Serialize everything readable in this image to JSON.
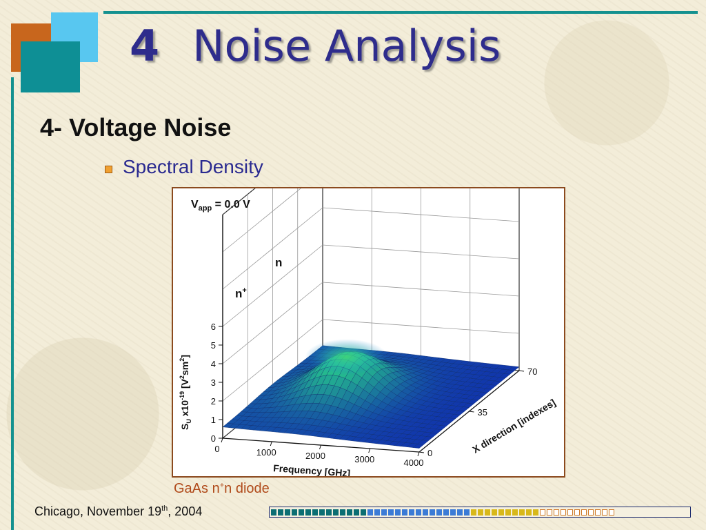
{
  "slide": {
    "title_number": "4",
    "title_text": "Noise Analysis",
    "subheading": "4- Voltage Noise",
    "bullet": "Spectral Density",
    "caption": {
      "prefix": "GaAs n",
      "sup": "+",
      "suffix": "n diode"
    },
    "footer": {
      "prefix": "Chicago, November 19",
      "sup": "th",
      "suffix": ", 2004"
    },
    "progress": {
      "filled": 39,
      "total": 50
    }
  },
  "colors": {
    "title": "#2e2c8c",
    "accent_teal": "#14918f",
    "accent_orange": "#c8661d",
    "accent_blue": "#58c7f0",
    "chart_border": "#8b4a1e",
    "caption": "#b04a1a"
  },
  "chart_data": {
    "type": "surface-3d",
    "annotation": {
      "main": "V",
      "sub": "app",
      "rest": " = 0.0  V"
    },
    "region_labels": [
      {
        "text": "n",
        "sup": "+"
      },
      {
        "text": "n",
        "sup": ""
      }
    ],
    "z_axis": {
      "label_parts": {
        "s": "S",
        "sub": "U",
        "mid": "  x10",
        "exp": "-19",
        "unit_open": "  [V",
        "unit_sup1": "2",
        "unit_mid": "sm",
        "unit_sup2": "2",
        "unit_close": "]"
      },
      "ticks": [
        "0",
        "1",
        "2",
        "3",
        "4",
        "5",
        "6"
      ],
      "range": [
        0,
        6
      ]
    },
    "x_axis": {
      "label": "Frequency [GHz]",
      "ticks": [
        "0",
        "1000",
        "2000",
        "3000",
        "4000"
      ],
      "range": [
        0,
        4000
      ]
    },
    "y_axis": {
      "label": "X direction [indexes]",
      "ticks": [
        "0",
        "35",
        "70"
      ],
      "range": [
        0,
        70
      ]
    },
    "surface": {
      "peak_value": 2.6,
      "peak_frequency": 1500,
      "peak_x_index": 35,
      "low_frequency_level": 0.6,
      "high_frequency_level": 0.2
    }
  }
}
